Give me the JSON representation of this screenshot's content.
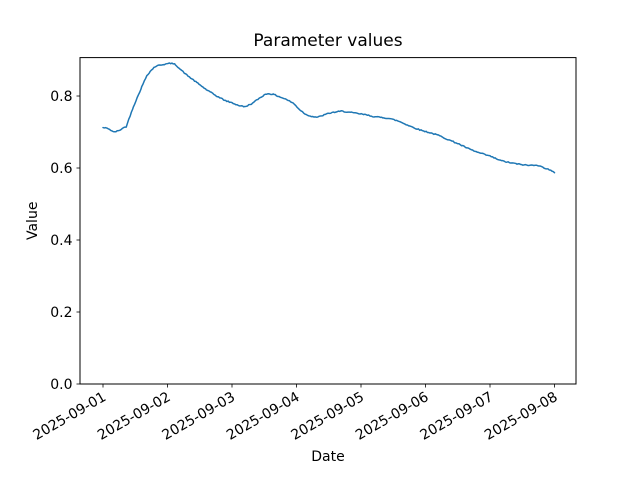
{
  "chart_data": {
    "type": "line",
    "title": "Parameter values",
    "xlabel": "Date",
    "ylabel": "Value",
    "grid": false,
    "legend": "none",
    "line_color": "#1f77b4",
    "line_width": 1.5,
    "axes_color": "#000000",
    "background_color": "#ffffff",
    "x_tick_labels": [
      "2025-09-01",
      "2025-09-02",
      "2025-09-03",
      "2025-09-04",
      "2025-09-05",
      "2025-09-06",
      "2025-09-07",
      "2025-09-08"
    ],
    "x_tick_days": [
      0,
      1,
      2,
      3,
      4,
      5,
      6,
      7
    ],
    "y_ticks": [
      0.0,
      0.2,
      0.4,
      0.6,
      0.8
    ],
    "xlim_days": [
      -0.3566,
      7.3333
    ],
    "ylim": [
      0.0,
      0.9067
    ],
    "noise_amplitude": 0.0015,
    "series": [
      {
        "name": "parameter-values",
        "x_days": [
          0.0,
          0.08,
          0.16,
          0.24,
          0.3,
          0.36,
          0.42,
          0.47,
          0.53,
          0.6,
          0.68,
          0.73,
          0.8,
          0.88,
          0.95,
          1.05,
          1.12,
          1.2,
          1.3,
          1.45,
          1.6,
          1.75,
          1.9,
          2.0,
          2.1,
          2.2,
          2.32,
          2.4,
          2.5,
          2.56,
          2.65,
          2.75,
          2.85,
          2.95,
          3.05,
          3.15,
          3.25,
          3.33,
          3.45,
          3.55,
          3.7,
          3.85,
          4.0,
          4.1,
          4.22,
          4.35,
          4.45,
          4.55,
          4.6,
          4.75,
          4.91,
          5.05,
          5.2,
          5.35,
          5.5,
          5.65,
          5.8,
          6.0,
          6.16,
          6.3,
          6.47,
          6.6,
          6.72,
          6.8,
          6.9,
          7.0
        ],
        "values": [
          0.712,
          0.71,
          0.7,
          0.703,
          0.71,
          0.715,
          0.745,
          0.77,
          0.795,
          0.825,
          0.857,
          0.868,
          0.881,
          0.886,
          0.888,
          0.891,
          0.888,
          0.874,
          0.858,
          0.838,
          0.818,
          0.801,
          0.787,
          0.781,
          0.774,
          0.77,
          0.78,
          0.791,
          0.803,
          0.807,
          0.804,
          0.797,
          0.79,
          0.78,
          0.762,
          0.748,
          0.743,
          0.741,
          0.749,
          0.754,
          0.758,
          0.754,
          0.75,
          0.747,
          0.742,
          0.74,
          0.737,
          0.732,
          0.729,
          0.717,
          0.706,
          0.699,
          0.691,
          0.679,
          0.668,
          0.655,
          0.644,
          0.633,
          0.621,
          0.615,
          0.61,
          0.607,
          0.609,
          0.603,
          0.597,
          0.587
        ]
      }
    ]
  }
}
